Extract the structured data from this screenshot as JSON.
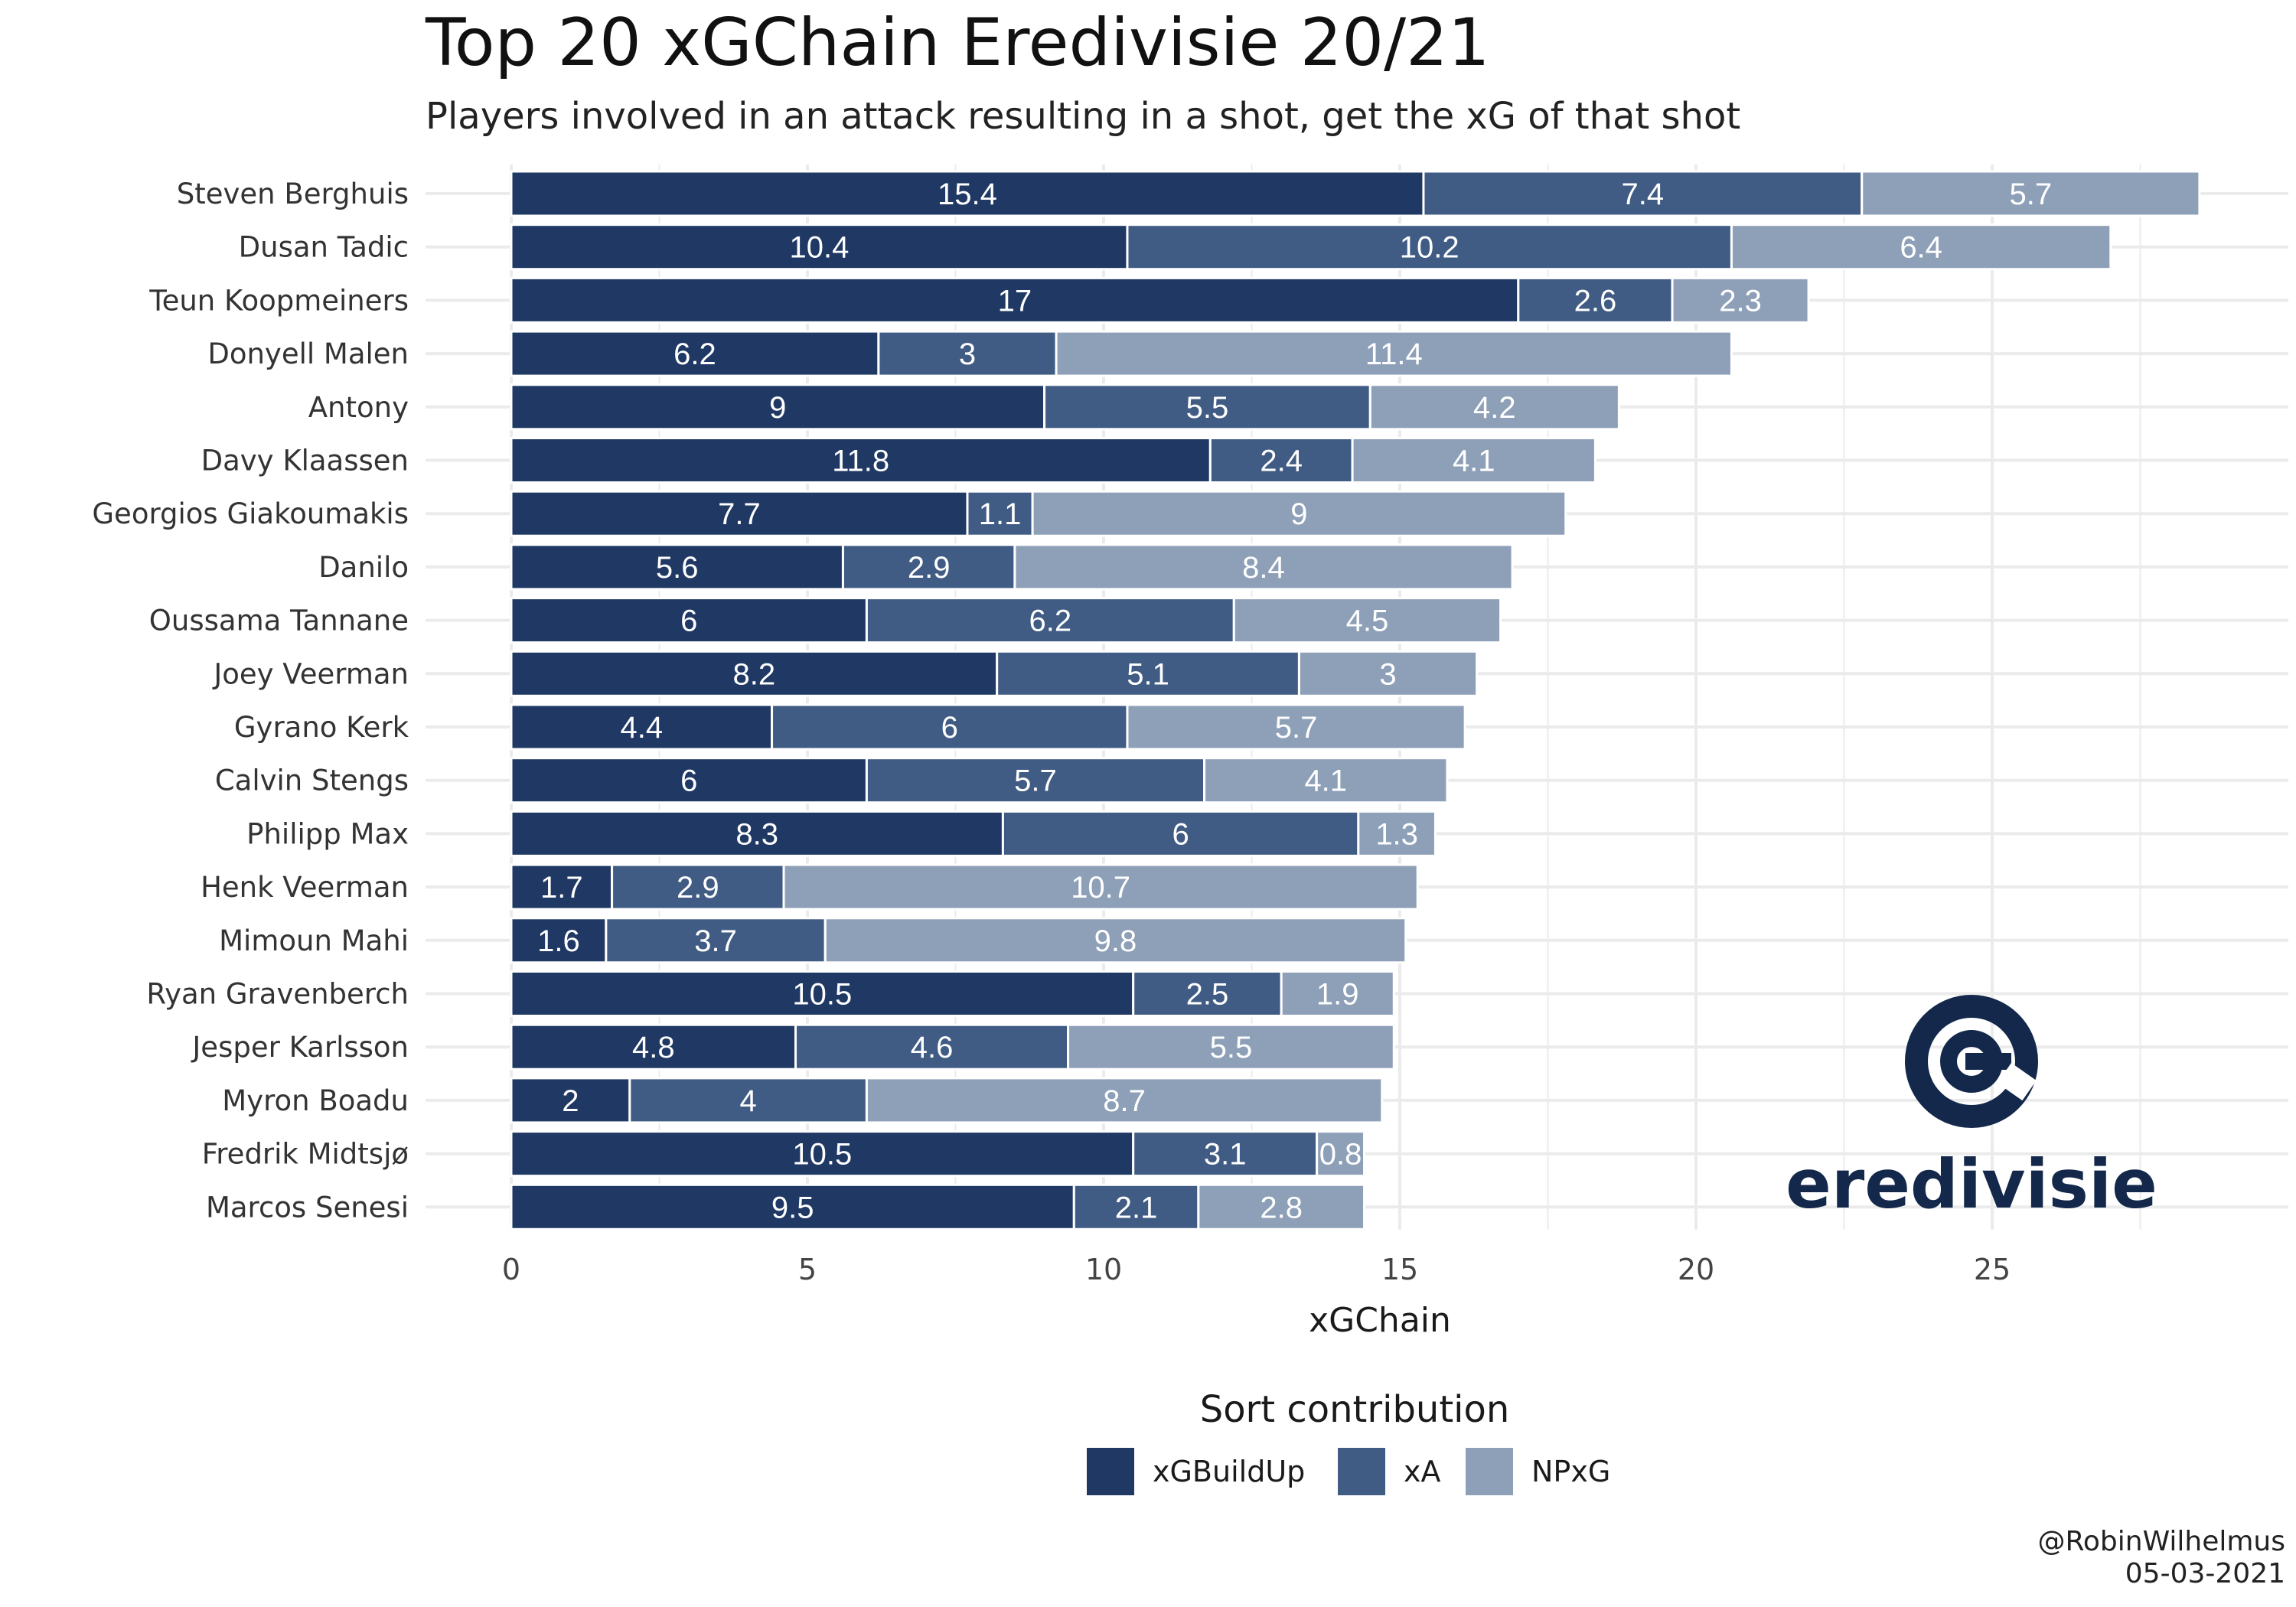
{
  "title": "Top 20 xGChain Eredivisie 20/21",
  "subtitle": "Players involved in an attack resulting in a shot, get the xG of that shot",
  "caption": {
    "handle": "@RobinWilhelmus",
    "date": "05-03-2021"
  },
  "logo": {
    "text": "eredivisie",
    "icon": "eredivisie-e-logo-icon"
  },
  "colors": {
    "xGBuildUp": "#1f3864",
    "xA": "#415c84",
    "NPxG": "#8ea0b8",
    "grid": "#ebebeb",
    "logo": "#13284a"
  },
  "chart_data": {
    "type": "bar",
    "orientation": "horizontal",
    "stacked": true,
    "xlabel": "xGChain",
    "ylabel": "",
    "xlim": [
      0,
      28.2
    ],
    "xticks": [
      0,
      5,
      10,
      15,
      20,
      25
    ],
    "grid": true,
    "legend_title": "Sort contribution",
    "legend_position": "bottom",
    "categories": [
      "Steven Berghuis",
      "Dusan Tadic",
      "Teun Koopmeiners",
      "Donyell Malen",
      "Antony",
      "Davy Klaassen",
      "Georgios Giakoumakis",
      "Danilo",
      "Oussama Tannane",
      "Joey Veerman",
      "Gyrano Kerk",
      "Calvin Stengs",
      "Philipp Max",
      "Henk Veerman",
      "Mimoun Mahi",
      "Ryan Gravenberch",
      "Jesper Karlsson",
      "Myron Boadu",
      "Fredrik Midtsjø",
      "Marcos Senesi"
    ],
    "series": [
      {
        "name": "xGBuildUp",
        "values": [
          15.4,
          10.4,
          17,
          6.2,
          9,
          11.8,
          7.7,
          5.6,
          6,
          8.2,
          4.4,
          6,
          8.3,
          1.7,
          1.6,
          10.5,
          4.8,
          2,
          10.5,
          9.5
        ]
      },
      {
        "name": "xA",
        "values": [
          7.4,
          10.2,
          2.6,
          3,
          5.5,
          2.4,
          1.1,
          2.9,
          6.2,
          5.1,
          6,
          5.7,
          6,
          2.9,
          3.7,
          2.5,
          4.6,
          4,
          3.1,
          2.1
        ]
      },
      {
        "name": "NPxG",
        "values": [
          5.7,
          6.4,
          2.3,
          11.4,
          4.2,
          4.1,
          9,
          8.4,
          4.5,
          3,
          5.7,
          4.1,
          1.3,
          10.7,
          9.8,
          1.9,
          5.5,
          8.7,
          0.8,
          2.8
        ]
      }
    ]
  }
}
